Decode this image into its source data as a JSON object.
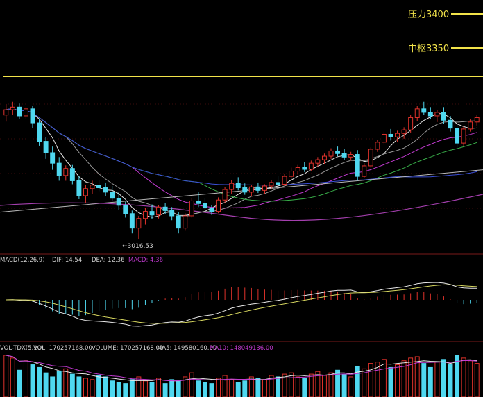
{
  "chart_data": {
    "type": "candlestick",
    "annotations": {
      "resistance": {
        "label": "压力3400",
        "value": 3400,
        "color": "#f2e34a"
      },
      "pivot": {
        "label": "中枢3350",
        "value": 3350,
        "color": "#f2e34a"
      },
      "low_marker": "3016.53",
      "horizontal_line_value": 3400
    },
    "price_scale": {
      "min": 3005,
      "max": 3385
    },
    "colors": {
      "up": "#e0322b",
      "down": "#4fd8f0",
      "grid": "#7a1a1a",
      "ma_white": "#e8e8e8",
      "ma_gray": "#9a9a9a",
      "ma_purple": "#c13ad0",
      "ma_green": "#39b04a",
      "ma_blue": "#3b4fd6"
    },
    "candles": [
      [
        3300,
        3325,
        3285,
        3312
      ],
      [
        3312,
        3330,
        3300,
        3318
      ],
      [
        3318,
        3326,
        3290,
        3298
      ],
      [
        3298,
        3318,
        3290,
        3314
      ],
      [
        3314,
        3320,
        3270,
        3282
      ],
      [
        3282,
        3290,
        3230,
        3240
      ],
      [
        3240,
        3250,
        3200,
        3214
      ],
      [
        3214,
        3228,
        3175,
        3190
      ],
      [
        3190,
        3204,
        3150,
        3162
      ],
      [
        3162,
        3185,
        3150,
        3178
      ],
      [
        3178,
        3186,
        3142,
        3150
      ],
      [
        3150,
        3160,
        3108,
        3116
      ],
      [
        3116,
        3140,
        3100,
        3132
      ],
      [
        3132,
        3150,
        3120,
        3140
      ],
      [
        3140,
        3152,
        3126,
        3134
      ],
      [
        3134,
        3146,
        3115,
        3124
      ],
      [
        3124,
        3138,
        3104,
        3110
      ],
      [
        3110,
        3125,
        3084,
        3094
      ],
      [
        3094,
        3102,
        3066,
        3075
      ],
      [
        3075,
        3082,
        3030,
        3042
      ],
      [
        3042,
        3070,
        3016,
        3064
      ],
      [
        3064,
        3088,
        3050,
        3080
      ],
      [
        3080,
        3096,
        3062,
        3072
      ],
      [
        3072,
        3094,
        3064,
        3090
      ],
      [
        3090,
        3100,
        3074,
        3082
      ],
      [
        3082,
        3090,
        3060,
        3070
      ],
      [
        3070,
        3078,
        3030,
        3042
      ],
      [
        3042,
        3076,
        3036,
        3070
      ],
      [
        3070,
        3110,
        3066,
        3104
      ],
      [
        3104,
        3124,
        3090,
        3098
      ],
      [
        3098,
        3110,
        3082,
        3088
      ],
      [
        3088,
        3094,
        3072,
        3080
      ],
      [
        3080,
        3112,
        3076,
        3106
      ],
      [
        3106,
        3136,
        3100,
        3130
      ],
      [
        3130,
        3152,
        3120,
        3144
      ],
      [
        3144,
        3158,
        3128,
        3134
      ],
      [
        3134,
        3144,
        3118,
        3124
      ],
      [
        3124,
        3140,
        3114,
        3136
      ],
      [
        3136,
        3146,
        3122,
        3128
      ],
      [
        3128,
        3142,
        3120,
        3138
      ],
      [
        3138,
        3152,
        3130,
        3146
      ],
      [
        3146,
        3160,
        3136,
        3142
      ],
      [
        3142,
        3166,
        3138,
        3160
      ],
      [
        3160,
        3180,
        3154,
        3172
      ],
      [
        3172,
        3186,
        3164,
        3180
      ],
      [
        3180,
        3192,
        3170,
        3176
      ],
      [
        3176,
        3196,
        3172,
        3190
      ],
      [
        3190,
        3204,
        3182,
        3198
      ],
      [
        3198,
        3212,
        3188,
        3206
      ],
      [
        3206,
        3224,
        3200,
        3218
      ],
      [
        3218,
        3228,
        3206,
        3212
      ],
      [
        3212,
        3222,
        3198,
        3204
      ],
      [
        3204,
        3216,
        3196,
        3210
      ],
      [
        3210,
        3220,
        3150,
        3160
      ],
      [
        3160,
        3190,
        3156,
        3184
      ],
      [
        3184,
        3226,
        3180,
        3222
      ],
      [
        3222,
        3244,
        3216,
        3238
      ],
      [
        3238,
        3262,
        3232,
        3256
      ],
      [
        3256,
        3268,
        3242,
        3250
      ],
      [
        3250,
        3264,
        3238,
        3258
      ],
      [
        3258,
        3272,
        3246,
        3266
      ],
      [
        3266,
        3300,
        3260,
        3294
      ],
      [
        3294,
        3320,
        3286,
        3314
      ],
      [
        3314,
        3330,
        3300,
        3306
      ],
      [
        3306,
        3318,
        3290,
        3298
      ],
      [
        3298,
        3312,
        3284,
        3306
      ],
      [
        3306,
        3318,
        3280,
        3288
      ],
      [
        3288,
        3298,
        3262,
        3270
      ],
      [
        3270,
        3280,
        3226,
        3236
      ],
      [
        3236,
        3274,
        3230,
        3268
      ],
      [
        3268,
        3290,
        3262,
        3284
      ],
      [
        3284,
        3300,
        3276,
        3294
      ]
    ],
    "macd": {
      "label": "MACD(12,26,9)",
      "dif": "DIF: 14.54",
      "dea": "DEA: 12.36",
      "macd": "MACD: 4.36"
    },
    "volume": {
      "label": "VOL-TDX(5,10)",
      "vol": "VOL: 170257168.00",
      "volume": "VOLUME: 170257168.00",
      "ma5": "MA5: 149580160.00",
      "ma10": "MA10: 148049136.00",
      "bars": [
        62,
        58,
        40,
        55,
        48,
        44,
        36,
        30,
        38,
        42,
        34,
        30,
        28,
        26,
        32,
        30,
        24,
        22,
        20,
        26,
        30,
        24,
        22,
        28,
        20,
        26,
        24,
        30,
        36,
        24,
        22,
        20,
        28,
        32,
        26,
        22,
        24,
        30,
        28,
        26,
        32,
        30,
        34,
        36,
        30,
        28,
        34,
        38,
        32,
        36,
        40,
        34,
        30,
        46,
        42,
        50,
        52,
        56,
        44,
        48,
        54,
        58,
        60,
        50,
        44,
        52,
        56,
        48,
        62,
        58,
        54,
        50
      ]
    }
  }
}
